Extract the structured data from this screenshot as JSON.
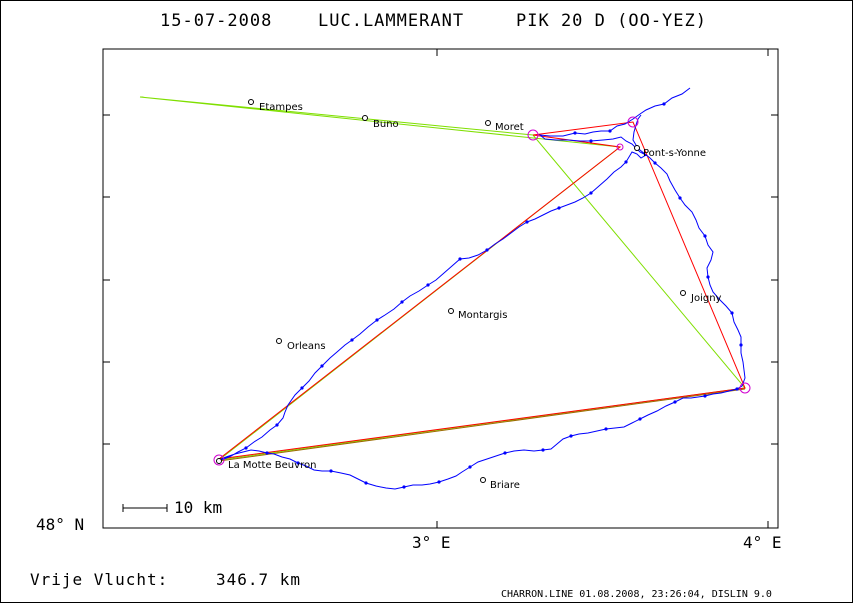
{
  "header": {
    "date": "15-07-2008",
    "pilot": "LUC.LAMMERANT",
    "glider": "PIK 20 D (OO-YEZ)"
  },
  "axes": {
    "lat_label": "48° N",
    "lon_labels": [
      "3° E",
      "4° E"
    ]
  },
  "scale_label": "10 km",
  "places": [
    {
      "id": "etampes",
      "name": "Etampes"
    },
    {
      "id": "buno",
      "name": "Buno"
    },
    {
      "id": "moret",
      "name": "Moret"
    },
    {
      "id": "pont-s-yonne",
      "name": "Pont-s-Yonne"
    },
    {
      "id": "joigny",
      "name": "Joigny"
    },
    {
      "id": "montargis",
      "name": "Montargis"
    },
    {
      "id": "orleans",
      "name": "Orleans"
    },
    {
      "id": "la-motte-beuvron",
      "name": "La Motte Beuvron"
    },
    {
      "id": "briare",
      "name": "Briare"
    }
  ],
  "distance": {
    "label": "Vrije Vlucht:",
    "value": "346.7 km"
  },
  "footer": "CHARRON.LINE 01.08.2008, 23:26:04, DISLIN 9.0",
  "colors": {
    "track": "#0000ff",
    "task": "#ff0000",
    "declared": "#7fdf00",
    "final_leg": "#9c6a00",
    "turnpoint": "#d000d0"
  }
}
